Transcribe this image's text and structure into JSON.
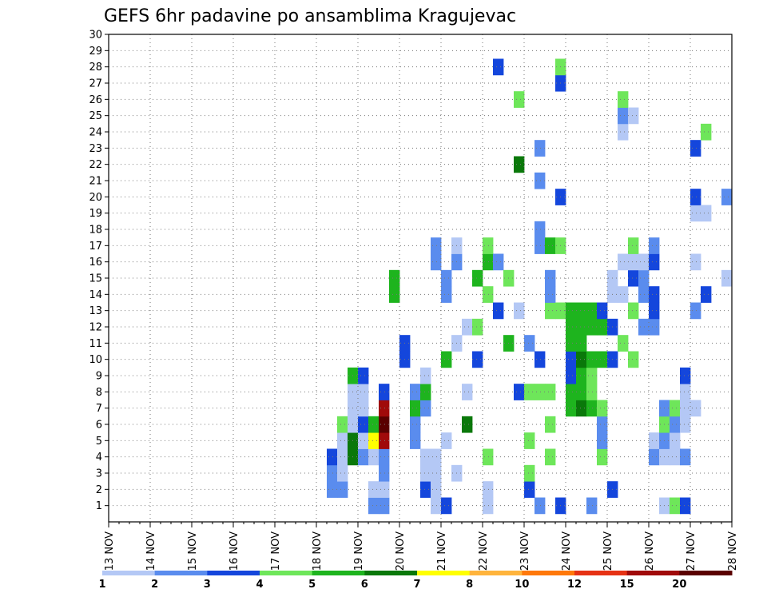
{
  "chart_data": {
    "type": "heatmap",
    "title": "GEFS 6hr padavine po ansamblima Kragujevac",
    "x_tick_labels": [
      "13 NOV",
      "14 NOV",
      "15 NOV",
      "16 NOV",
      "17 NOV",
      "18 NOV",
      "19 NOV",
      "20 NOV",
      "21 NOV",
      "22 NOV",
      "23 NOV",
      "24 NOV",
      "25 NOV",
      "26 NOV",
      "27 NOV",
      "28 NOV"
    ],
    "y_tick_labels": [
      "1",
      "2",
      "3",
      "4",
      "5",
      "6",
      "7",
      "8",
      "9",
      "10",
      "11",
      "12",
      "13",
      "14",
      "15",
      "16",
      "17",
      "18",
      "19",
      "20",
      "21",
      "22",
      "23",
      "24",
      "25",
      "26",
      "27",
      "28",
      "29",
      "30"
    ],
    "x_range": [
      0,
      60
    ],
    "y_range": [
      0,
      30
    ],
    "grid": true,
    "color_levels": [
      "1",
      "2",
      "3",
      "4",
      "5",
      "6",
      "7",
      "8",
      "10",
      "12",
      "15",
      "20"
    ],
    "colors": [
      "#b4c8f5",
      "#5a8cee",
      "#1446dc",
      "#6ee65a",
      "#1eb41e",
      "#0a780a",
      "#ffff00",
      "#ffb43c",
      "#ff780a",
      "#e63214",
      "#a00a0a",
      "#5a0000"
    ],
    "cells": [
      [
        2,
        22,
        1
      ],
      [
        3,
        22,
        1
      ],
      [
        4,
        22,
        2
      ],
      [
        2,
        23,
        1
      ],
      [
        3,
        23,
        0
      ],
      [
        4,
        23,
        0
      ],
      [
        5,
        23,
        0
      ],
      [
        6,
        23,
        3
      ],
      [
        4,
        24,
        5
      ],
      [
        5,
        24,
        5
      ],
      [
        6,
        24,
        0
      ],
      [
        7,
        24,
        0
      ],
      [
        8,
        24,
        0
      ],
      [
        9,
        24,
        4
      ],
      [
        4,
        25,
        1
      ],
      [
        5,
        25,
        0
      ],
      [
        6,
        25,
        2
      ],
      [
        7,
        25,
        0
      ],
      [
        8,
        25,
        0
      ],
      [
        9,
        25,
        2
      ],
      [
        1,
        26,
        1
      ],
      [
        2,
        26,
        0
      ],
      [
        4,
        26,
        0
      ],
      [
        5,
        26,
        6
      ],
      [
        6,
        26,
        4
      ],
      [
        1,
        27,
        1
      ],
      [
        2,
        27,
        0
      ],
      [
        3,
        27,
        1
      ],
      [
        4,
        27,
        1
      ],
      [
        5,
        27,
        10
      ],
      [
        6,
        27,
        11
      ],
      [
        7,
        27,
        10
      ],
      [
        8,
        27,
        2
      ],
      [
        14,
        28,
        4
      ],
      [
        15,
        28,
        4
      ],
      [
        10,
        29,
        2
      ],
      [
        11,
        29,
        2
      ],
      [
        5,
        30,
        1
      ],
      [
        6,
        30,
        1
      ],
      [
        7,
        30,
        4
      ],
      [
        8,
        30,
        1
      ],
      [
        2,
        31,
        2
      ],
      [
        3,
        31,
        0
      ],
      [
        4,
        31,
        0
      ],
      [
        7,
        31,
        1
      ],
      [
        8,
        31,
        4
      ],
      [
        9,
        31,
        0
      ],
      [
        1,
        32,
        0
      ],
      [
        2,
        32,
        0
      ],
      [
        3,
        32,
        0
      ],
      [
        4,
        32,
        0
      ],
      [
        16,
        32,
        1
      ],
      [
        17,
        32,
        1
      ],
      [
        1,
        33,
        2
      ],
      [
        5,
        33,
        0
      ],
      [
        10,
        33,
        4
      ],
      [
        14,
        33,
        1
      ],
      [
        15,
        33,
        1
      ],
      [
        3,
        34,
        0
      ],
      [
        11,
        34,
        0
      ],
      [
        16,
        34,
        1
      ],
      [
        17,
        34,
        0
      ],
      [
        6,
        35,
        5
      ],
      [
        8,
        35,
        0
      ],
      [
        12,
        35,
        0
      ],
      [
        10,
        36,
        2
      ],
      [
        12,
        36,
        3
      ],
      [
        15,
        36,
        4
      ],
      [
        1,
        37,
        0
      ],
      [
        2,
        37,
        0
      ],
      [
        4,
        37,
        3
      ],
      [
        14,
        37,
        3
      ],
      [
        16,
        37,
        4
      ],
      [
        17,
        37,
        3
      ],
      [
        13,
        38,
        2
      ],
      [
        16,
        38,
        1
      ],
      [
        28,
        38,
        2
      ],
      [
        11,
        39,
        4
      ],
      [
        15,
        39,
        3
      ],
      [
        8,
        40,
        2
      ],
      [
        13,
        40,
        0
      ],
      [
        22,
        40,
        5
      ],
      [
        26,
        40,
        3
      ],
      [
        2,
        41,
        2
      ],
      [
        3,
        41,
        3
      ],
      [
        5,
        41,
        3
      ],
      [
        8,
        41,
        3
      ],
      [
        11,
        41,
        1
      ],
      [
        1,
        42,
        1
      ],
      [
        8,
        42,
        3
      ],
      [
        10,
        42,
        2
      ],
      [
        17,
        42,
        1
      ],
      [
        18,
        42,
        1
      ],
      [
        21,
        42,
        1
      ],
      [
        23,
        42,
        1
      ],
      [
        4,
        43,
        3
      ],
      [
        6,
        43,
        3
      ],
      [
        8,
        43,
        3
      ],
      [
        13,
        43,
        3
      ],
      [
        14,
        43,
        1
      ],
      [
        15,
        43,
        1
      ],
      [
        17,
        43,
        4
      ],
      [
        1,
        44,
        2
      ],
      [
        13,
        44,
        3
      ],
      [
        17,
        44,
        3
      ],
      [
        20,
        44,
        2
      ],
      [
        27,
        44,
        2
      ],
      [
        28,
        44,
        3
      ],
      [
        7,
        45,
        4
      ],
      [
        8,
        45,
        4
      ],
      [
        9,
        45,
        2
      ],
      [
        10,
        45,
        2
      ],
      [
        11,
        45,
        4
      ],
      [
        12,
        45,
        4
      ],
      [
        13,
        45,
        4
      ],
      [
        7,
        46,
        5
      ],
      [
        8,
        46,
        4
      ],
      [
        9,
        46,
        4
      ],
      [
        10,
        46,
        5
      ],
      [
        11,
        46,
        4
      ],
      [
        12,
        46,
        4
      ],
      [
        13,
        46,
        4
      ],
      [
        1,
        47,
        1
      ],
      [
        7,
        47,
        4
      ],
      [
        8,
        47,
        3
      ],
      [
        9,
        47,
        3
      ],
      [
        10,
        47,
        4
      ],
      [
        12,
        47,
        4
      ],
      [
        13,
        47,
        4
      ],
      [
        4,
        48,
        3
      ],
      [
        5,
        48,
        1
      ],
      [
        6,
        48,
        1
      ],
      [
        7,
        48,
        3
      ],
      [
        10,
        48,
        4
      ],
      [
        12,
        48,
        4
      ],
      [
        13,
        48,
        2
      ],
      [
        2,
        49,
        2
      ],
      [
        10,
        49,
        2
      ],
      [
        12,
        49,
        2
      ],
      [
        14,
        49,
        0
      ],
      [
        15,
        49,
        0
      ],
      [
        11,
        50,
        3
      ],
      [
        14,
        50,
        0
      ],
      [
        16,
        50,
        0
      ],
      [
        24,
        50,
        0
      ],
      [
        25,
        50,
        1
      ],
      [
        26,
        50,
        3
      ],
      [
        10,
        51,
        3
      ],
      [
        13,
        51,
        3
      ],
      [
        15,
        51,
        2
      ],
      [
        16,
        51,
        0
      ],
      [
        17,
        51,
        3
      ],
      [
        25,
        51,
        0
      ],
      [
        12,
        52,
        1
      ],
      [
        14,
        52,
        1
      ],
      [
        15,
        52,
        1
      ],
      [
        16,
        52,
        0
      ],
      [
        4,
        53,
        1
      ],
      [
        5,
        53,
        0
      ],
      [
        12,
        53,
        1
      ],
      [
        13,
        53,
        2
      ],
      [
        14,
        53,
        2
      ],
      [
        16,
        53,
        2
      ],
      [
        17,
        53,
        1
      ],
      [
        1,
        54,
        0
      ],
      [
        4,
        54,
        0
      ],
      [
        5,
        54,
        1
      ],
      [
        6,
        54,
        3
      ],
      [
        7,
        54,
        1
      ],
      [
        1,
        55,
        3
      ],
      [
        4,
        55,
        0
      ],
      [
        5,
        55,
        0
      ],
      [
        6,
        55,
        1
      ],
      [
        7,
        55,
        3
      ],
      [
        1,
        56,
        2
      ],
      [
        4,
        56,
        1
      ],
      [
        6,
        56,
        0
      ],
      [
        7,
        56,
        0
      ],
      [
        8,
        56,
        0
      ],
      [
        9,
        56,
        2
      ],
      [
        7,
        57,
        0
      ],
      [
        13,
        57,
        1
      ],
      [
        16,
        57,
        0
      ],
      [
        19,
        57,
        0
      ],
      [
        20,
        57,
        2
      ],
      [
        23,
        57,
        2
      ],
      [
        14,
        58,
        2
      ],
      [
        19,
        58,
        0
      ],
      [
        24,
        58,
        3
      ],
      [
        15,
        60,
        0
      ],
      [
        20,
        60,
        1
      ]
    ]
  }
}
